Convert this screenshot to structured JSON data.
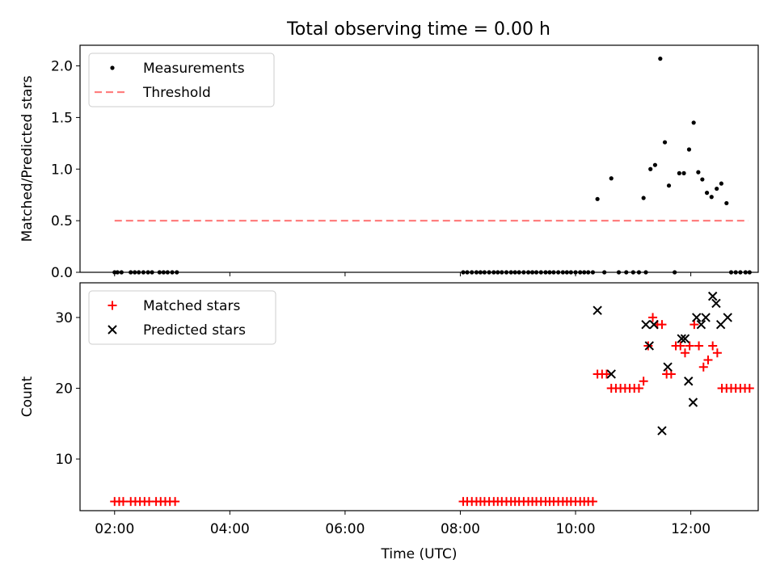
{
  "title": "Total observing time = 0.00 h",
  "chart_data": [
    {
      "type": "scatter",
      "panel": "top",
      "title": "Total observing time = 0.00 h",
      "xlabel": "",
      "ylabel": "Matched/Predicted stars",
      "xlim": [
        1.4,
        13.17
      ],
      "ylim": [
        0.0,
        2.2
      ],
      "y_ticks": [
        0.0,
        0.5,
        1.0,
        1.5,
        2.0
      ],
      "y_tick_labels": [
        "0.0",
        "0.5",
        "1.0",
        "1.5",
        "2.0"
      ],
      "x_tick_labels_shown": false,
      "legend_position": "top-left",
      "grid": false,
      "series": [
        {
          "name": "Measurements",
          "kind": "points",
          "color": "#000000",
          "x": [
            2.0,
            2.05,
            2.12,
            2.28,
            2.35,
            2.42,
            2.5,
            2.58,
            2.65,
            2.78,
            2.85,
            2.92,
            3.0,
            3.08,
            8.05,
            8.12,
            8.2,
            8.28,
            8.35,
            8.42,
            8.5,
            8.58,
            8.65,
            8.72,
            8.8,
            8.88,
            8.95,
            9.02,
            9.1,
            9.18,
            9.25,
            9.32,
            9.4,
            9.48,
            9.55,
            9.62,
            9.7,
            9.78,
            9.85,
            9.92,
            10.0,
            10.08,
            10.15,
            10.22,
            10.3,
            10.38,
            10.5,
            10.62,
            10.75,
            10.88,
            11.0,
            11.1,
            11.18,
            11.22,
            11.3,
            11.38,
            11.47,
            11.55,
            11.62,
            11.72,
            11.8,
            11.88,
            11.97,
            12.05,
            12.13,
            12.2,
            12.28,
            12.36,
            12.45,
            12.53,
            12.62,
            12.7,
            12.78,
            12.86,
            12.95,
            13.02
          ],
          "y": [
            0,
            0,
            0,
            0,
            0,
            0,
            0,
            0,
            0,
            0,
            0,
            0,
            0,
            0,
            0,
            0,
            0,
            0,
            0,
            0,
            0,
            0,
            0,
            0,
            0,
            0,
            0,
            0,
            0,
            0,
            0,
            0,
            0,
            0,
            0,
            0,
            0,
            0,
            0,
            0,
            0,
            0,
            0,
            0,
            0,
            0.71,
            0,
            0.91,
            0,
            0,
            0,
            0,
            0.72,
            0,
            1.0,
            1.04,
            2.07,
            1.26,
            0.84,
            0,
            0.96,
            0.96,
            1.19,
            1.45,
            0.97,
            0.9,
            0.77,
            0.73,
            0.81,
            0.86,
            0.67,
            0,
            0,
            0,
            0,
            0
          ]
        },
        {
          "name": "Threshold",
          "kind": "dashed-line",
          "color": "#ff7f7f",
          "x": [
            2.0,
            13.0
          ],
          "y": [
            0.5,
            0.5
          ]
        }
      ]
    },
    {
      "type": "scatter",
      "panel": "bottom",
      "title": "",
      "xlabel": "Time (UTC)",
      "ylabel": "Count",
      "xlim": [
        1.4,
        13.17
      ],
      "ylim": [
        2.7,
        34.9
      ],
      "x_ticks": [
        2,
        4,
        6,
        8,
        10,
        12
      ],
      "x_tick_labels": [
        "02:00",
        "04:00",
        "06:00",
        "08:00",
        "10:00",
        "12:00"
      ],
      "y_ticks": [
        10,
        20,
        30
      ],
      "y_tick_labels": [
        "10",
        "20",
        "30"
      ],
      "legend_position": "top-left",
      "grid": false,
      "series": [
        {
          "name": "Matched stars",
          "marker": "plus",
          "color": "#ff0000",
          "x": [
            2.0,
            2.08,
            2.15,
            2.28,
            2.36,
            2.44,
            2.52,
            2.6,
            2.72,
            2.8,
            2.88,
            2.96,
            3.05,
            8.05,
            8.12,
            8.2,
            8.28,
            8.35,
            8.42,
            8.5,
            8.58,
            8.65,
            8.72,
            8.8,
            8.88,
            8.95,
            9.02,
            9.1,
            9.18,
            9.25,
            9.32,
            9.4,
            9.48,
            9.55,
            9.62,
            9.7,
            9.78,
            9.85,
            9.92,
            10.0,
            10.08,
            10.15,
            10.22,
            10.3,
            10.38,
            10.46,
            10.54,
            10.62,
            10.7,
            10.78,
            10.86,
            10.94,
            11.02,
            11.1,
            11.18,
            11.26,
            11.34,
            11.42,
            11.5,
            11.58,
            11.66,
            11.74,
            11.82,
            11.9,
            11.98,
            12.06,
            12.14,
            12.22,
            12.3,
            12.38,
            12.46,
            12.54,
            12.62,
            12.7,
            12.78,
            12.86,
            12.94,
            13.02
          ],
          "y": [
            4,
            4,
            4,
            4,
            4,
            4,
            4,
            4,
            4,
            4,
            4,
            4,
            4,
            4,
            4,
            4,
            4,
            4,
            4,
            4,
            4,
            4,
            4,
            4,
            4,
            4,
            4,
            4,
            4,
            4,
            4,
            4,
            4,
            4,
            4,
            4,
            4,
            4,
            4,
            4,
            4,
            4,
            4,
            4,
            22,
            22,
            22,
            20,
            20,
            20,
            20,
            20,
            20,
            20,
            21,
            26,
            30,
            29,
            29,
            22,
            22,
            26,
            26,
            25,
            26,
            29,
            26,
            23,
            24,
            26,
            25,
            20,
            20,
            20,
            20,
            20,
            20,
            20
          ]
        },
        {
          "name": "Predicted stars",
          "marker": "x",
          "color": "#000000",
          "x": [
            10.38,
            10.62,
            11.22,
            11.28,
            11.36,
            11.5,
            11.6,
            11.84,
            11.9,
            11.96,
            12.04,
            12.1,
            12.18,
            12.26,
            12.38,
            12.44,
            12.52,
            12.64
          ],
          "y": [
            31,
            22,
            29,
            26,
            29,
            14,
            23,
            27,
            27,
            21,
            18,
            30,
            29,
            30,
            33,
            32,
            29,
            30
          ]
        }
      ]
    }
  ]
}
